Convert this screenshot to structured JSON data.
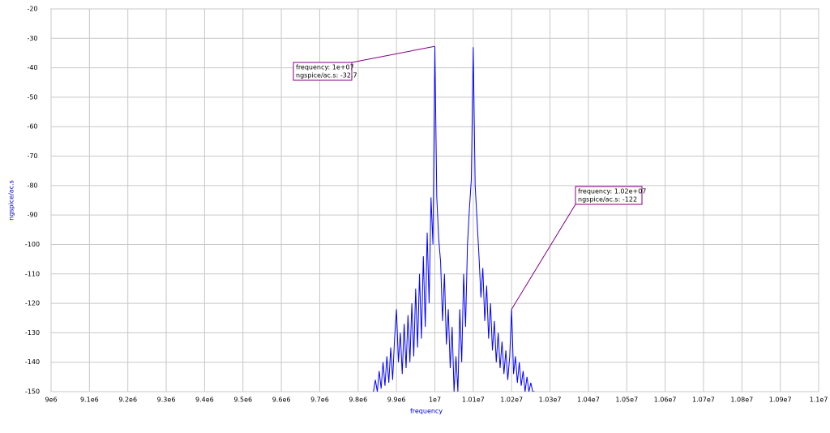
{
  "chart_data": {
    "type": "line",
    "xlabel": "frequency",
    "ylabel": "ngspice/ac.s",
    "xlim": [
      9000000,
      11000000
    ],
    "xticks": [
      {
        "value": 9000000,
        "label": "9e6"
      },
      {
        "value": 9100000,
        "label": "9.1e6"
      },
      {
        "value": 9200000,
        "label": "9.2e6"
      },
      {
        "value": 9300000,
        "label": "9.3e6"
      },
      {
        "value": 9400000,
        "label": "9.4e6"
      },
      {
        "value": 9500000,
        "label": "9.5e6"
      },
      {
        "value": 9600000,
        "label": "9.6e6"
      },
      {
        "value": 9700000,
        "label": "9.7e6"
      },
      {
        "value": 9800000,
        "label": "9.8e6"
      },
      {
        "value": 9900000,
        "label": "9.9e6"
      },
      {
        "value": 10000000,
        "label": "1e7"
      },
      {
        "value": 10100000,
        "label": "1.01e7"
      },
      {
        "value": 10200000,
        "label": "1.02e7"
      },
      {
        "value": 10300000,
        "label": "1.03e7"
      },
      {
        "value": 10400000,
        "label": "1.04e7"
      },
      {
        "value": 10500000,
        "label": "1.05e7"
      },
      {
        "value": 10600000,
        "label": "1.06e7"
      },
      {
        "value": 10700000,
        "label": "1.07e7"
      },
      {
        "value": 10800000,
        "label": "1.08e7"
      },
      {
        "value": 10900000,
        "label": "1.09e7"
      },
      {
        "value": 11000000,
        "label": "1.1e7"
      }
    ],
    "ylim": [
      -150,
      -20
    ],
    "yticks": [
      -20,
      -30,
      -40,
      -50,
      -60,
      -70,
      -80,
      -90,
      -100,
      -110,
      -120,
      -130,
      -140,
      -150
    ],
    "grid": true,
    "x": [
      9840000,
      9845000,
      9850000,
      9855000,
      9860000,
      9865000,
      9870000,
      9875000,
      9880000,
      9885000,
      9890000,
      9895000,
      9900000,
      9905000,
      9910000,
      9915000,
      9920000,
      9925000,
      9930000,
      9935000,
      9940000,
      9945000,
      9950000,
      9955000,
      9960000,
      9965000,
      9970000,
      9975000,
      9980000,
      9985000,
      9990000,
      9995000,
      10000000,
      10005000,
      10010000,
      10015000,
      10020000,
      10025000,
      10030000,
      10035000,
      10040000,
      10045000,
      10050000,
      10055000,
      10060000,
      10065000,
      10070000,
      10075000,
      10080000,
      10085000,
      10090000,
      10095000,
      10100000,
      10105000,
      10110000,
      10115000,
      10120000,
      10125000,
      10130000,
      10135000,
      10140000,
      10145000,
      10150000,
      10155000,
      10160000,
      10165000,
      10170000,
      10175000,
      10180000,
      10185000,
      10190000,
      10195000,
      10200000,
      10205000,
      10210000,
      10215000,
      10220000,
      10225000,
      10230000,
      10235000,
      10240000,
      10245000,
      10250000,
      10255000,
      10260000
    ],
    "series": [
      {
        "color": "#0000ff",
        "values": [
          -150,
          -146,
          -150,
          -143,
          -149,
          -140,
          -148,
          -138,
          -147,
          -135,
          -146,
          -132,
          -122,
          -140,
          -130,
          -144,
          -127,
          -142,
          -124,
          -140,
          -120,
          -138,
          -115,
          -135,
          -110,
          -132,
          -104,
          -128,
          -96,
          -120,
          -84,
          -100,
          -32.7,
          -84,
          -98,
          -106,
          -126,
          -110,
          -134,
          -122,
          -142,
          -128,
          -150,
          -138,
          -150,
          -122,
          -140,
          -110,
          -128,
          -100,
          -88,
          -78,
          -33,
          -80,
          -92,
          -104,
          -118,
          -108,
          -126,
          -114,
          -132,
          -120,
          -136,
          -126,
          -140,
          -130,
          -142,
          -133,
          -144,
          -136,
          -146,
          -138,
          -122,
          -144,
          -138,
          -147,
          -140,
          -148,
          -143,
          -150,
          -145,
          -150,
          -147,
          -150,
          -150
        ]
      }
    ],
    "annotation_color": "#800080",
    "annotations": [
      {
        "x": 10000000,
        "y": -32.7,
        "lines": [
          "frequency: 1e+07",
          "ngspice/ac.s: -32.7"
        ]
      },
      {
        "x": 10200000,
        "y": -122,
        "lines": [
          "frequency: 1.02e+07",
          "ngspice/ac.s: -122"
        ]
      }
    ]
  }
}
